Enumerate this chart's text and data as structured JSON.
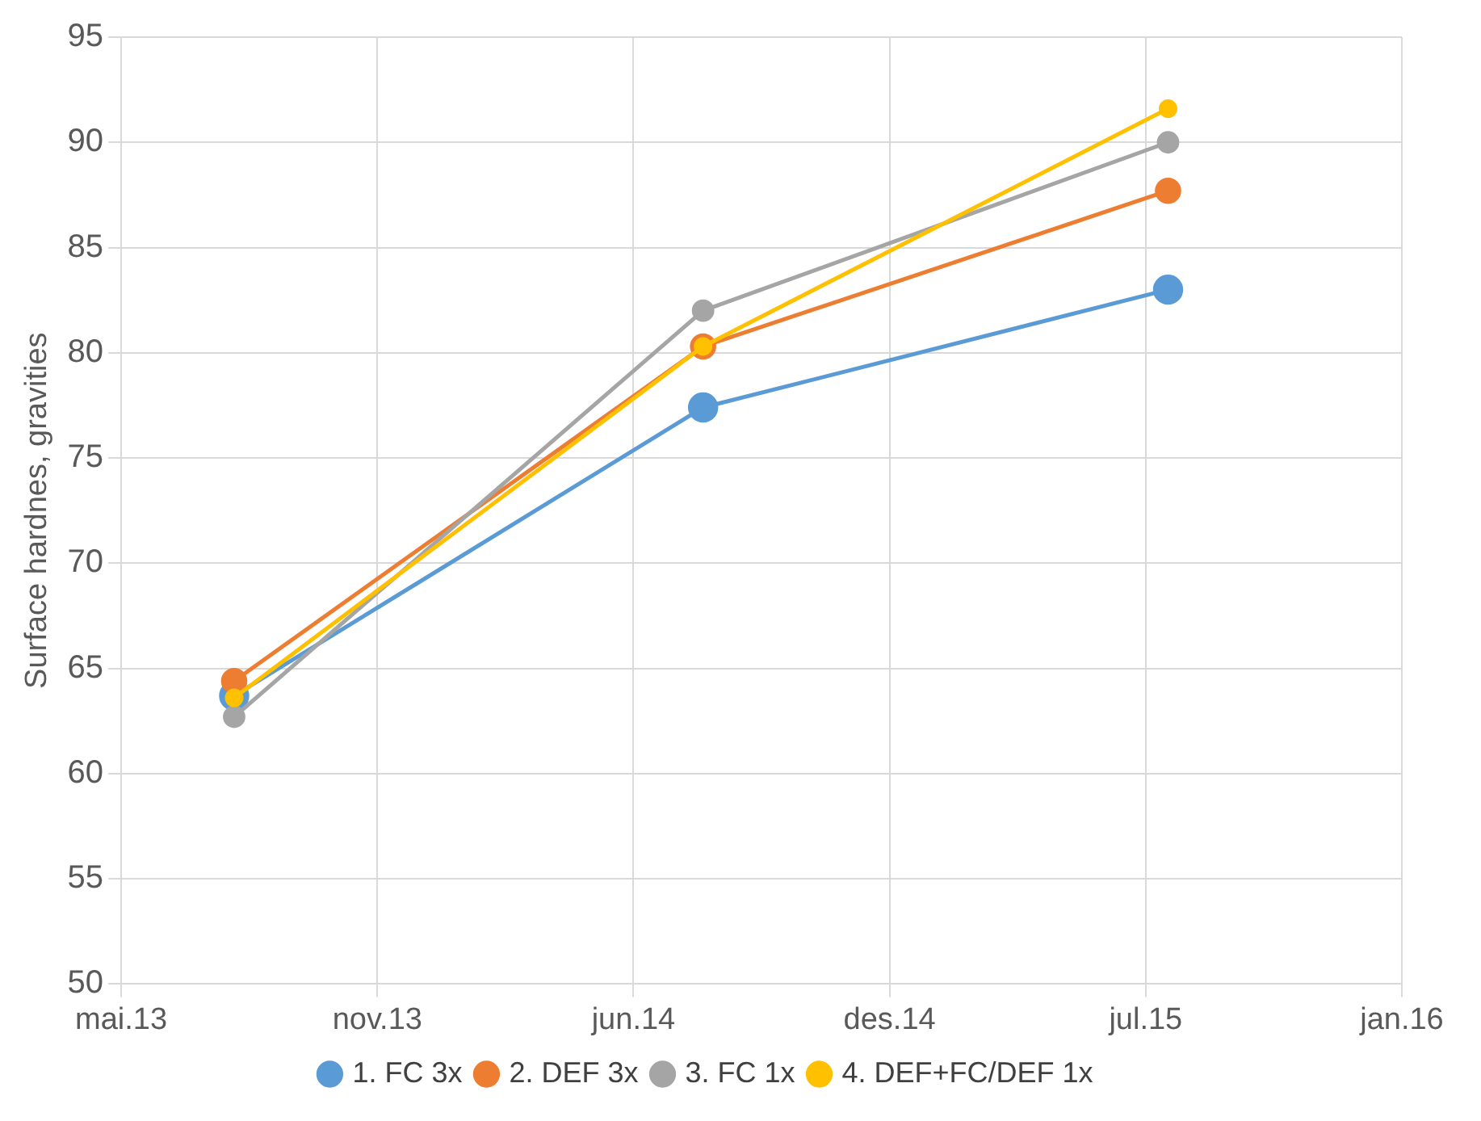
{
  "chart_data": {
    "type": "line",
    "ylabel": "Surface hardnes, gravities",
    "x": [
      "2013-08-09",
      "2014-08-01",
      "2015-07-21"
    ],
    "series": [
      {
        "name": "1. FC 3x",
        "color": "#5b9bd5",
        "values": [
          63.7,
          77.4,
          83.0
        ]
      },
      {
        "name": "2. DEF 3x",
        "color": "#ed7d31",
        "values": [
          64.4,
          80.3,
          87.7
        ]
      },
      {
        "name": "3. FC 1x",
        "color": "#a5a5a5",
        "values": [
          62.7,
          82.0,
          90.0
        ]
      },
      {
        "name": "4. DEF+FC/DEF 1x",
        "color": "#ffc000",
        "values": [
          63.6,
          80.3,
          91.6
        ]
      }
    ],
    "xlim": [
      "2013-05-15",
      "2016-01-15"
    ],
    "xticks": [
      {
        "value": "2013-05-15",
        "label": "mai.13"
      },
      {
        "value": "2013-11-26",
        "label": "nov.13"
      },
      {
        "value": "2014-06-09",
        "label": "jun.14"
      },
      {
        "value": "2014-12-21",
        "label": "des.14"
      },
      {
        "value": "2015-07-04",
        "label": "jul.15"
      },
      {
        "value": "2016-01-15",
        "label": "jan.16"
      }
    ],
    "ylim": [
      50,
      95
    ],
    "yticks": [
      50,
      55,
      60,
      65,
      70,
      75,
      80,
      85,
      90,
      95
    ],
    "grid": true,
    "legend": "bottom",
    "marker": "circle",
    "line_style": "solid"
  }
}
